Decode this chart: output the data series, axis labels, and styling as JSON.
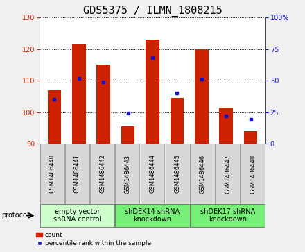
{
  "title": "GDS5375 / ILMN_1808215",
  "samples": [
    "GSM1486440",
    "GSM1486441",
    "GSM1486442",
    "GSM1486443",
    "GSM1486444",
    "GSM1486445",
    "GSM1486446",
    "GSM1486447",
    "GSM1486448"
  ],
  "count_values": [
    107,
    121.5,
    115,
    95.5,
    123,
    104.5,
    120,
    101.5,
    94
  ],
  "percentile_values": [
    35,
    52,
    49,
    24,
    68,
    40,
    51,
    22,
    19
  ],
  "bar_bottom": 90,
  "ylim_left": [
    90,
    130
  ],
  "ylim_right": [
    0,
    100
  ],
  "yticks_left": [
    90,
    100,
    110,
    120,
    130
  ],
  "yticks_right": [
    0,
    25,
    50,
    75,
    100
  ],
  "bar_color": "#cc2200",
  "marker_color": "#1111cc",
  "fig_bg": "#f0f0f0",
  "plot_bg": "#ffffff",
  "groups": [
    {
      "label": "empty vector\nshRNA control",
      "start": 0,
      "end": 3,
      "color": "#ccffcc"
    },
    {
      "label": "shDEK14 shRNA\nknockdown",
      "start": 3,
      "end": 6,
      "color": "#77ee77"
    },
    {
      "label": "shDEK17 shRNA\nknockdown",
      "start": 6,
      "end": 9,
      "color": "#77ee77"
    }
  ],
  "protocol_label": "protocol",
  "legend_count_label": "count",
  "legend_percentile_label": "percentile rank within the sample",
  "title_fontsize": 11,
  "tick_fontsize": 7,
  "sample_fontsize": 6,
  "group_fontsize": 7
}
